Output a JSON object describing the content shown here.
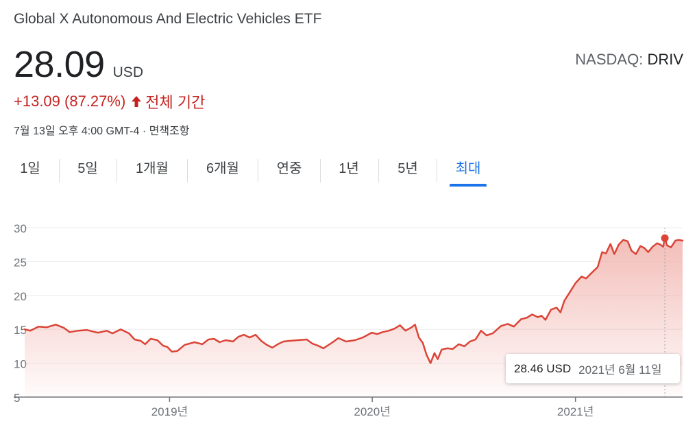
{
  "header": {
    "title": "Global X Autonomous And Electric Vehicles ETF",
    "price": "28.09",
    "currency": "USD",
    "exchange_label": "NASDAQ:",
    "ticker": "DRIV",
    "change": "+13.09 (87.27%)",
    "change_period": "전체 기간",
    "timestamp": "7월 13일 오후 4:00 GMT-4 · 면책조항"
  },
  "range_tabs": [
    {
      "label": "1일",
      "active": false
    },
    {
      "label": "5일",
      "active": false
    },
    {
      "label": "1개월",
      "active": false
    },
    {
      "label": "6개월",
      "active": false
    },
    {
      "label": "연중",
      "active": false
    },
    {
      "label": "1년",
      "active": false
    },
    {
      "label": "5년",
      "active": false
    },
    {
      "label": "최대",
      "active": true
    }
  ],
  "colors": {
    "line": "#db4437",
    "negative": "#c5221f",
    "accent": "#1a73e8",
    "area_top": "#f1b2ac"
  },
  "tooltip": {
    "price": "28.46 USD",
    "date": "2021년 6월 11일"
  },
  "chart_data": {
    "type": "area",
    "title": "",
    "xlabel": "",
    "ylabel": "",
    "x_range": [
      "2018-04-15",
      "2021-07-13"
    ],
    "ylim": [
      5,
      30
    ],
    "y_ticks": [
      5,
      10,
      15,
      20,
      25,
      30
    ],
    "x_ticks": [
      {
        "date": "2019-01-01",
        "label": "2019년"
      },
      {
        "date": "2020-01-01",
        "label": "2020년"
      },
      {
        "date": "2021-01-01",
        "label": "2021년"
      }
    ],
    "grid": true,
    "highlight": {
      "date": "2021-06-11",
      "value": 28.46
    },
    "series": [
      {
        "values": [
          [
            "2018-04-15",
            15.0
          ],
          [
            "2018-04-25",
            14.8
          ],
          [
            "2018-05-10",
            15.4
          ],
          [
            "2018-05-25",
            15.3
          ],
          [
            "2018-06-10",
            15.7
          ],
          [
            "2018-06-25",
            15.2
          ],
          [
            "2018-07-05",
            14.6
          ],
          [
            "2018-07-20",
            14.8
          ],
          [
            "2018-08-05",
            14.9
          ],
          [
            "2018-08-25",
            14.5
          ],
          [
            "2018-09-10",
            14.8
          ],
          [
            "2018-09-20",
            14.4
          ],
          [
            "2018-10-05",
            15.0
          ],
          [
            "2018-10-20",
            14.4
          ],
          [
            "2018-10-30",
            13.5
          ],
          [
            "2018-11-10",
            13.3
          ],
          [
            "2018-11-18",
            12.8
          ],
          [
            "2018-11-28",
            13.6
          ],
          [
            "2018-12-10",
            13.4
          ],
          [
            "2018-12-20",
            12.6
          ],
          [
            "2018-12-28",
            12.4
          ],
          [
            "2019-01-05",
            11.7
          ],
          [
            "2019-01-15",
            11.8
          ],
          [
            "2019-01-28",
            12.7
          ],
          [
            "2019-02-15",
            13.1
          ],
          [
            "2019-03-01",
            12.8
          ],
          [
            "2019-03-12",
            13.5
          ],
          [
            "2019-03-22",
            13.6
          ],
          [
            "2019-04-01",
            13.1
          ],
          [
            "2019-04-12",
            13.4
          ],
          [
            "2019-04-25",
            13.2
          ],
          [
            "2019-05-05",
            13.9
          ],
          [
            "2019-05-15",
            14.2
          ],
          [
            "2019-05-25",
            13.8
          ],
          [
            "2019-06-05",
            14.2
          ],
          [
            "2019-06-15",
            13.3
          ],
          [
            "2019-06-25",
            12.7
          ],
          [
            "2019-07-05",
            12.3
          ],
          [
            "2019-07-15",
            12.8
          ],
          [
            "2019-07-25",
            13.2
          ],
          [
            "2019-08-05",
            13.3
          ],
          [
            "2019-08-20",
            13.4
          ],
          [
            "2019-09-05",
            13.5
          ],
          [
            "2019-09-15",
            12.9
          ],
          [
            "2019-09-25",
            12.6
          ],
          [
            "2019-10-05",
            12.2
          ],
          [
            "2019-10-20",
            13.0
          ],
          [
            "2019-11-01",
            13.7
          ],
          [
            "2019-11-15",
            13.2
          ],
          [
            "2019-12-01",
            13.4
          ],
          [
            "2019-12-15",
            13.8
          ],
          [
            "2019-12-31",
            14.5
          ],
          [
            "2020-01-10",
            14.3
          ],
          [
            "2020-01-20",
            14.6
          ],
          [
            "2020-01-31",
            14.8
          ],
          [
            "2020-02-10",
            15.1
          ],
          [
            "2020-02-20",
            15.6
          ],
          [
            "2020-03-01",
            14.8
          ],
          [
            "2020-03-12",
            15.3
          ],
          [
            "2020-03-18",
            15.7
          ],
          [
            "2020-03-25",
            13.8
          ],
          [
            "2020-04-01",
            13.0
          ],
          [
            "2020-04-08",
            11.2
          ],
          [
            "2020-04-15",
            10.0
          ],
          [
            "2020-04-22",
            11.5
          ],
          [
            "2020-04-28",
            10.6
          ],
          [
            "2020-05-05",
            12.0
          ],
          [
            "2020-05-15",
            12.2
          ],
          [
            "2020-05-25",
            12.1
          ],
          [
            "2020-06-05",
            12.8
          ],
          [
            "2020-06-15",
            12.5
          ],
          [
            "2020-06-25",
            13.2
          ],
          [
            "2020-07-05",
            13.5
          ],
          [
            "2020-07-15",
            14.8
          ],
          [
            "2020-07-25",
            14.1
          ],
          [
            "2020-08-05",
            14.4
          ],
          [
            "2020-08-20",
            15.5
          ],
          [
            "2020-09-01",
            15.8
          ],
          [
            "2020-09-12",
            15.4
          ],
          [
            "2020-09-25",
            16.5
          ],
          [
            "2020-10-05",
            16.7
          ],
          [
            "2020-10-15",
            17.2
          ],
          [
            "2020-10-25",
            16.8
          ],
          [
            "2020-11-01",
            17.0
          ],
          [
            "2020-11-08",
            16.4
          ],
          [
            "2020-11-18",
            17.9
          ],
          [
            "2020-11-28",
            18.2
          ],
          [
            "2020-12-05",
            17.5
          ],
          [
            "2020-12-12",
            19.2
          ],
          [
            "2020-12-22",
            20.5
          ],
          [
            "2021-01-01",
            21.8
          ],
          [
            "2021-01-12",
            22.8
          ],
          [
            "2021-01-20",
            22.5
          ],
          [
            "2021-01-31",
            23.4
          ],
          [
            "2021-02-10",
            24.2
          ],
          [
            "2021-02-18",
            26.4
          ],
          [
            "2021-02-25",
            26.2
          ],
          [
            "2021-03-05",
            27.6
          ],
          [
            "2021-03-12",
            26.1
          ],
          [
            "2021-03-20",
            27.5
          ],
          [
            "2021-03-28",
            28.2
          ],
          [
            "2021-04-05",
            28.0
          ],
          [
            "2021-04-12",
            26.6
          ],
          [
            "2021-04-20",
            26.1
          ],
          [
            "2021-04-28",
            27.3
          ],
          [
            "2021-05-05",
            27.0
          ],
          [
            "2021-05-12",
            26.4
          ],
          [
            "2021-05-20",
            27.2
          ],
          [
            "2021-05-28",
            27.7
          ],
          [
            "2021-06-03",
            27.5
          ],
          [
            "2021-06-08",
            27.2
          ],
          [
            "2021-06-11",
            28.46
          ],
          [
            "2021-06-15",
            27.4
          ],
          [
            "2021-06-22",
            27.1
          ],
          [
            "2021-06-30",
            28.1
          ],
          [
            "2021-07-06",
            28.2
          ],
          [
            "2021-07-13",
            28.09
          ]
        ]
      }
    ]
  }
}
